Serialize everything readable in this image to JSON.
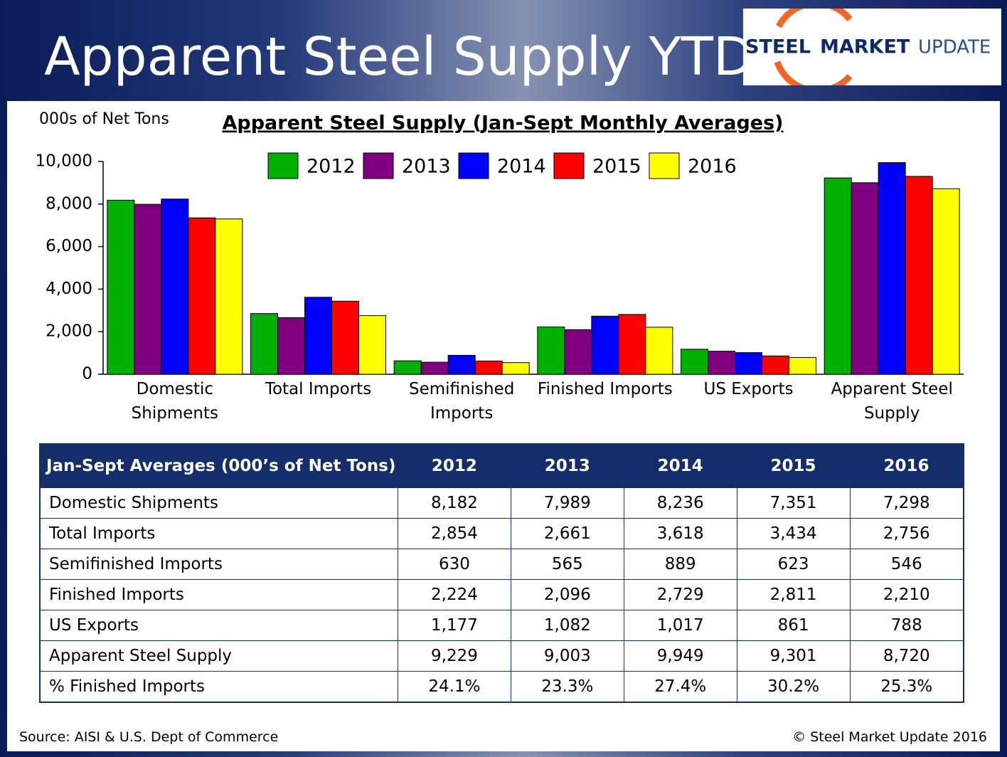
{
  "header": {
    "title": "Apparent Steel Supply YTD",
    "logo": [
      "STEEL",
      "MARKET",
      "UPDATE"
    ]
  },
  "chart_data": {
    "type": "bar",
    "title": "Apparent Steel Supply (Jan-Sept Monthly Averages)",
    "y_label": "000s of Net Tons",
    "categories": [
      "Domestic Shipments",
      "Total Imports",
      "Semifinished Imports",
      "Finished Imports",
      "US Exports",
      "Apparent Steel Supply"
    ],
    "series": [
      {
        "name": "2012",
        "color": "#00b000",
        "values": [
          8182,
          2854,
          630,
          2224,
          1177,
          9229
        ]
      },
      {
        "name": "2013",
        "color": "#800080",
        "values": [
          7989,
          2661,
          565,
          2096,
          1082,
          9003
        ]
      },
      {
        "name": "2014",
        "color": "#0000ff",
        "values": [
          8236,
          3618,
          889,
          2729,
          1017,
          9949
        ]
      },
      {
        "name": "2015",
        "color": "#ff0000",
        "values": [
          7351,
          3434,
          623,
          2811,
          861,
          9301
        ]
      },
      {
        "name": "2016",
        "color": "#ffff00",
        "values": [
          7298,
          2756,
          546,
          2210,
          788,
          8720
        ]
      }
    ],
    "ylim": [
      0,
      10000
    ],
    "yticks": [
      0,
      {
        "value": 2000,
        "label": "2,000"
      },
      {
        "value": 4000,
        "label": "4,000"
      },
      {
        "value": 6000,
        "label": "6,000"
      },
      {
        "value": 8000,
        "label": "8,000"
      },
      {
        "value": 10000,
        "label": "10,000"
      }
    ],
    "grid": false,
    "legend": "top"
  },
  "table": {
    "header": [
      "Jan-Sept Averages (000’s of Net Tons)",
      "2012",
      "2013",
      "2014",
      "2015",
      "2016"
    ],
    "rows": [
      [
        "Domestic Shipments",
        "8,182",
        "7,989",
        "8,236",
        "7,351",
        "7,298"
      ],
      [
        "Total Imports",
        "2,854",
        "2,661",
        "3,618",
        "3,434",
        "2,756"
      ],
      [
        "Semifinished Imports",
        "630",
        "565",
        "889",
        "623",
        "546"
      ],
      [
        "Finished Imports",
        "2,224",
        "2,096",
        "2,729",
        "2,811",
        "2,210"
      ],
      [
        "US Exports",
        "1,177",
        "1,082",
        "1,017",
        "861",
        "788"
      ],
      [
        "Apparent Steel Supply",
        "9,229",
        "9,003",
        "9,949",
        "9,301",
        "8,720"
      ],
      [
        "% Finished Imports",
        "24.1%",
        "23.3%",
        "27.4%",
        "30.2%",
        "25.3%"
      ]
    ]
  },
  "footer": {
    "source": "Source:  AISI & U.S. Dept of Commerce",
    "copyright": "©   Steel Market Update 2016"
  }
}
